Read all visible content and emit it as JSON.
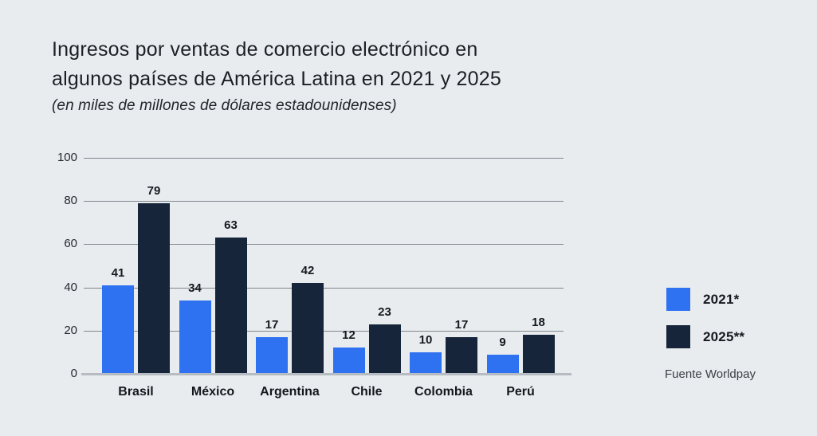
{
  "header": {
    "title_line1": "Ingresos por ventas de comercio electrónico en",
    "title_line2": "algunos países de América Latina en 2021 y 2025",
    "subtitle": "(en miles de millones de dólares estadounidenses)"
  },
  "chart_data": {
    "type": "bar",
    "title": "Ingresos por ventas de comercio electrónico en algunos países de América Latina en 2021 y 2025",
    "subtitle": "(en miles de millones de dólares estadounidenses)",
    "categories": [
      "Brasil",
      "México",
      "Argentina",
      "Chile",
      "Colombia",
      "Perú"
    ],
    "series": [
      {
        "name": "2021*",
        "color": "#2E71F1",
        "values": [
          41,
          34,
          17,
          12,
          10,
          9
        ]
      },
      {
        "name": "2025**",
        "color": "#16253A",
        "values": [
          79,
          63,
          42,
          23,
          17,
          18
        ]
      }
    ],
    "xlabel": "",
    "ylabel": "",
    "yticks": [
      0,
      20,
      40,
      60,
      80,
      100
    ],
    "ylim": [
      0,
      100
    ],
    "grid": true,
    "value_labels": true,
    "legend_position": "right"
  },
  "colors": {
    "background": "#E8ECEF",
    "gridline": "#81878E",
    "baseline": "#B7BCC2",
    "text": "#1D1F24"
  },
  "source": {
    "text": "Fuente Worldpay"
  }
}
